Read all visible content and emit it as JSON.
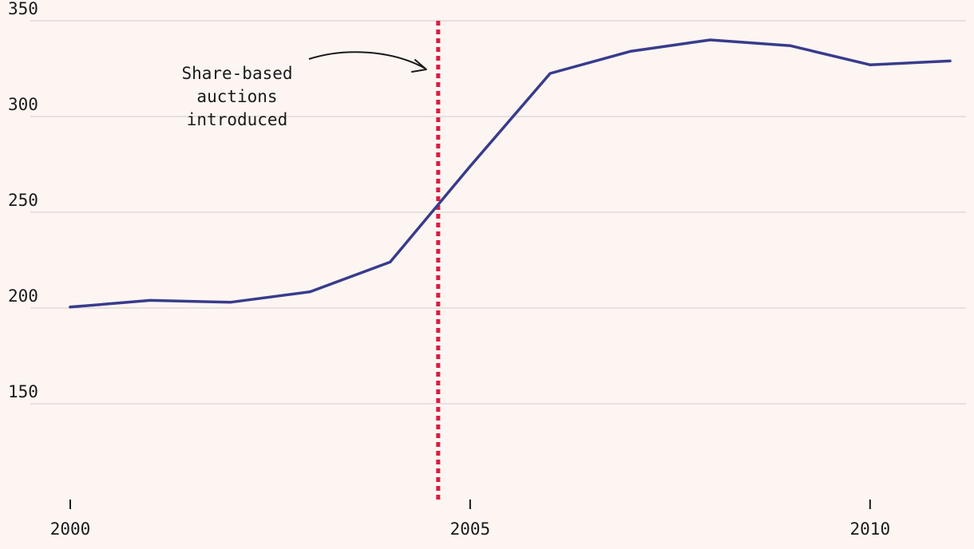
{
  "chart_data": {
    "type": "line",
    "title": "",
    "xlabel": "",
    "ylabel": "",
    "xlim": [
      2000,
      2011
    ],
    "ylim": [
      100,
      350
    ],
    "x_ticks": [
      2000,
      2005,
      2010
    ],
    "x_tick_labels": [
      "2000",
      "2005",
      "2010"
    ],
    "y_ticks": [
      150,
      200,
      250,
      300,
      350
    ],
    "y_tick_labels": [
      "150",
      "200",
      "250",
      "300",
      "350"
    ],
    "grid": "horizontal",
    "series": [
      {
        "color": "#383c8c",
        "x": [
          2000,
          2001,
          2002,
          2003,
          2004,
          2005,
          2006,
          2007,
          2008,
          2009,
          2010,
          2011
        ],
        "values": [
          200.5,
          204,
          203,
          208.5,
          224,
          274,
          322.5,
          334,
          340,
          337,
          327,
          329
        ]
      }
    ],
    "reference_line": {
      "x": 2004.6,
      "color": "#e0193f",
      "style": "dotted"
    },
    "annotation": {
      "lines": [
        "Share-based",
        "auctions",
        "introduced"
      ]
    },
    "colors": {
      "background": "#fdf5f2",
      "grid": "#dcd4d4",
      "axis": "#1a1a1a"
    }
  }
}
